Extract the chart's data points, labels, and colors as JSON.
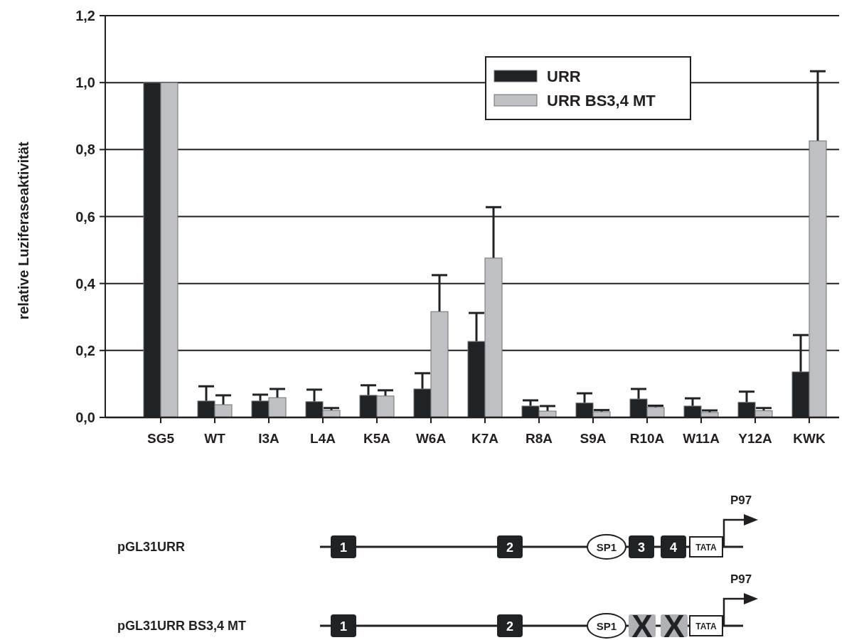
{
  "chart_data": {
    "type": "bar",
    "ylabel": "relative Luziferaseaktivität",
    "categories": [
      "SG5",
      "WT",
      "I3A",
      "L4A",
      "K5A",
      "W6A",
      "K7A",
      "R8A",
      "S9A",
      "R10A",
      "W11A",
      "Y12A",
      "KWK"
    ],
    "series": [
      {
        "name": "URR",
        "color": "#1f2326",
        "values": [
          1,
          0.049,
          0.049,
          0.047,
          0.066,
          0.085,
          0.227,
          0.034,
          0.043,
          0.055,
          0.034,
          0.045,
          0.136
        ],
        "errors": [
          null,
          [
            0.049,
            0.093
          ],
          [
            0.049,
            0.068
          ],
          [
            0.047,
            0.083
          ],
          [
            0.066,
            0.096
          ],
          [
            0.085,
            0.132
          ],
          [
            0.227,
            0.312
          ],
          [
            0.034,
            0.051
          ],
          [
            0.043,
            0.072
          ],
          [
            0.055,
            0.085
          ],
          [
            0.034,
            0.057
          ],
          [
            0.045,
            0.077
          ],
          [
            0.136,
            0.246
          ]
        ]
      },
      {
        "name": "URR BS3,4 MT",
        "color": "#bfc0c4",
        "values": [
          1,
          0.038,
          0.059,
          0.021,
          0.064,
          0.316,
          0.476,
          0.019,
          0.017,
          0.03,
          0.015,
          0.02,
          0.826
        ],
        "errors": [
          null,
          [
            0.038,
            0.066
          ],
          [
            0.059,
            0.085
          ],
          [
            0.021,
            0.028
          ],
          [
            0.064,
            0.081
          ],
          [
            0.316,
            0.425
          ],
          [
            0.476,
            0.628
          ],
          [
            0.019,
            0.034
          ],
          [
            0.017,
            0.022
          ],
          [
            0.03,
            0.035
          ],
          [
            0.015,
            0.021
          ],
          [
            0.02,
            0.028
          ],
          [
            0.826,
            1.034
          ]
        ]
      }
    ],
    "ylim": [
      0,
      1.2
    ],
    "yticks": [
      {
        "value": 0,
        "label": "0,0"
      },
      {
        "value": 0.2,
        "label": "0,2"
      },
      {
        "value": 0.4,
        "label": "0,4"
      },
      {
        "value": 0.6,
        "label": "0,6"
      },
      {
        "value": 0.8,
        "label": "0,8"
      },
      {
        "value": 1,
        "label": "1,0"
      },
      {
        "value": 1.2,
        "label": "1,2"
      }
    ],
    "grid": "y",
    "legend": "top right",
    "annotations": [
      "pGL31URR",
      "pGL31URR BS3,4 MT",
      "P97",
      "1",
      "2",
      "SP1",
      "3",
      "4",
      "TATA",
      "X"
    ]
  }
}
